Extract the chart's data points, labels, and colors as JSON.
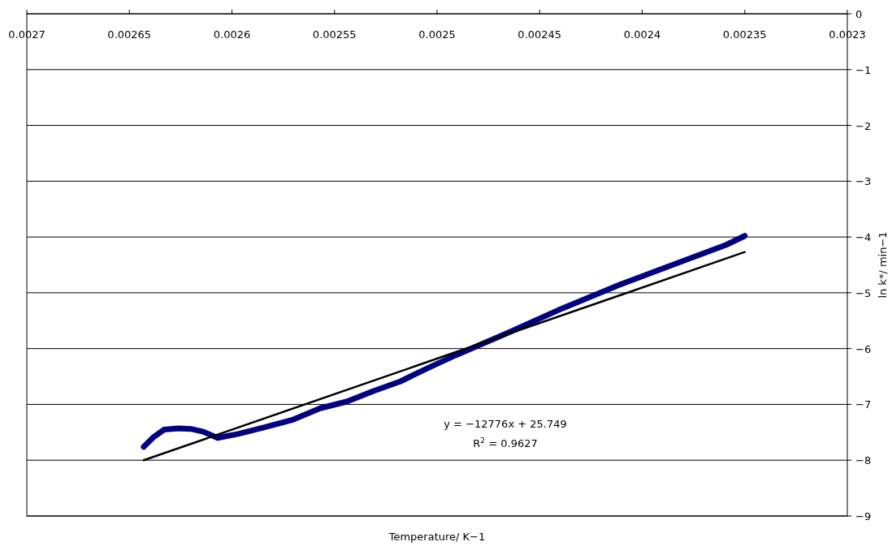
{
  "chart_data": {
    "type": "line",
    "xlabel": "Temperature/ K−1",
    "ylabel": "ln k*/ min−1",
    "xlim": [
      0.0027,
      0.0023
    ],
    "xticks": [
      0.0027,
      0.00265,
      0.0026,
      0.00255,
      0.0025,
      0.00245,
      0.0024,
      0.00235,
      0.0023
    ],
    "ylim": [
      -9,
      0
    ],
    "yticks": [
      0,
      {
        "value": -1,
        "label": "−1"
      },
      {
        "value": -2,
        "label": "−2"
      },
      {
        "value": -3,
        "label": "−3"
      },
      {
        "value": -4,
        "label": "−4"
      },
      {
        "value": -5,
        "label": "−5"
      },
      {
        "value": -6,
        "label": "−6"
      },
      {
        "value": -7,
        "label": "−7"
      },
      {
        "value": -8,
        "label": "−8"
      },
      {
        "value": -9,
        "label": "−9"
      }
    ],
    "grid": "y",
    "marker": "none",
    "line_style": "solid",
    "series": [
      {
        "color": "#000080",
        "x": [
          0.002643,
          0.002638,
          0.002633,
          0.002626,
          0.00262,
          0.002614,
          0.002607,
          0.002597,
          0.002584,
          0.00257,
          0.002557,
          0.002544,
          0.002531,
          0.002518,
          0.002504,
          0.002491,
          0.002465,
          0.002439,
          0.002412,
          0.002386,
          0.002359,
          0.00235
        ],
        "values": [
          -7.76,
          -7.58,
          -7.45,
          -7.43,
          -7.44,
          -7.49,
          -7.6,
          -7.53,
          -7.41,
          -7.27,
          -7.07,
          -6.95,
          -6.76,
          -6.59,
          -6.34,
          -6.12,
          -5.71,
          -5.28,
          -4.87,
          -4.51,
          -4.14,
          -3.98
        ]
      },
      {
        "type": "line",
        "color": "#000000",
        "x": [
          0.002643,
          0.00235
        ],
        "values": [
          -8.0,
          -4.27
        ]
      }
    ],
    "annotations": [
      "y = −12776x + 25.749",
      "R$^{2}$ = 0.9627"
    ]
  }
}
